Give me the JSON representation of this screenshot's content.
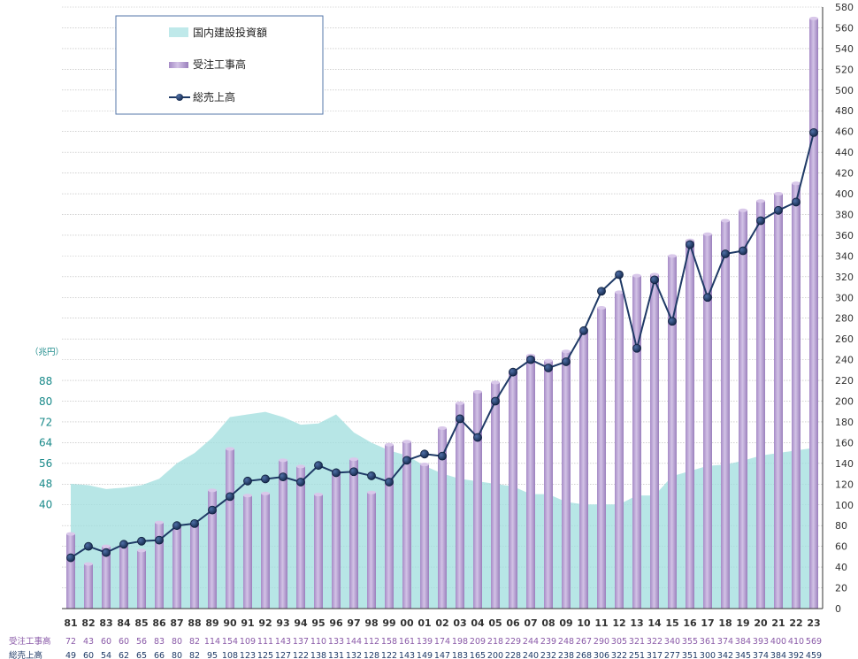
{
  "chart_data": {
    "type": "bar",
    "categories": [
      "81",
      "82",
      "83",
      "84",
      "85",
      "86",
      "87",
      "88",
      "89",
      "90",
      "91",
      "92",
      "93",
      "94",
      "95",
      "96",
      "97",
      "98",
      "99",
      "00",
      "01",
      "02",
      "03",
      "04",
      "05",
      "06",
      "07",
      "08",
      "09",
      "10",
      "11",
      "12",
      "13",
      "14",
      "15",
      "16",
      "17",
      "18",
      "19",
      "20",
      "21",
      "22",
      "23"
    ],
    "series": [
      {
        "name": "受注工事高",
        "type": "bar",
        "axis": "right",
        "color": "#b59ad0",
        "values": [
          72,
          43,
          60,
          60,
          56,
          83,
          80,
          82,
          114,
          154,
          109,
          111,
          143,
          137,
          110,
          133,
          144,
          112,
          158,
          161,
          139,
          174,
          198,
          209,
          218,
          229,
          244,
          239,
          248,
          267,
          290,
          305,
          321,
          322,
          340,
          355,
          361,
          374,
          384,
          393,
          400,
          410,
          569
        ]
      },
      {
        "name": "総売上高",
        "type": "line",
        "axis": "right",
        "color": "#1f3a66",
        "values": [
          49,
          60,
          54,
          62,
          65,
          66,
          80,
          82,
          95,
          108,
          123,
          125,
          127,
          122,
          138,
          131,
          132,
          128,
          122,
          143,
          149,
          147,
          183,
          165,
          200,
          228,
          240,
          232,
          238,
          268,
          306,
          322,
          251,
          317,
          277,
          351,
          300,
          342,
          345,
          374,
          384,
          392,
          459
        ]
      },
      {
        "name": "国内建設投資額",
        "type": "area",
        "axis": "left",
        "color": "#9fdede",
        "values": [
          48,
          47.5,
          46,
          46.5,
          47.5,
          50,
          56,
          60,
          66,
          74,
          75,
          76,
          74,
          71,
          71.5,
          75,
          68,
          64,
          61,
          59,
          55,
          52,
          50,
          49,
          48,
          47,
          44,
          44,
          41,
          40,
          40,
          40,
          43.5,
          43.5,
          51,
          53,
          55,
          55.5,
          57,
          59,
          60,
          61,
          62
        ]
      }
    ],
    "right_axis": {
      "min": 0,
      "max": 580,
      "step": 20
    },
    "left_axis": {
      "ticks": [
        40,
        48,
        56,
        64,
        72,
        80,
        88
      ],
      "unit": "（兆円）"
    },
    "grid": true,
    "legend": {
      "placement": "top-left",
      "items": [
        {
          "label": "国内建設投資額",
          "swatch": "area"
        },
        {
          "label": "受注工事高",
          "swatch": "bar"
        },
        {
          "label": "総売上高",
          "swatch": "line-marker"
        }
      ]
    },
    "table_rows": {
      "orders_label": "受注工事高",
      "sales_label": "総売上高"
    },
    "colors": {
      "bar": "#b59ad0",
      "bar_top": "#d9c8ea",
      "line": "#1f3a66",
      "area": "#9fdede",
      "grid": "#b8b8b8"
    }
  }
}
